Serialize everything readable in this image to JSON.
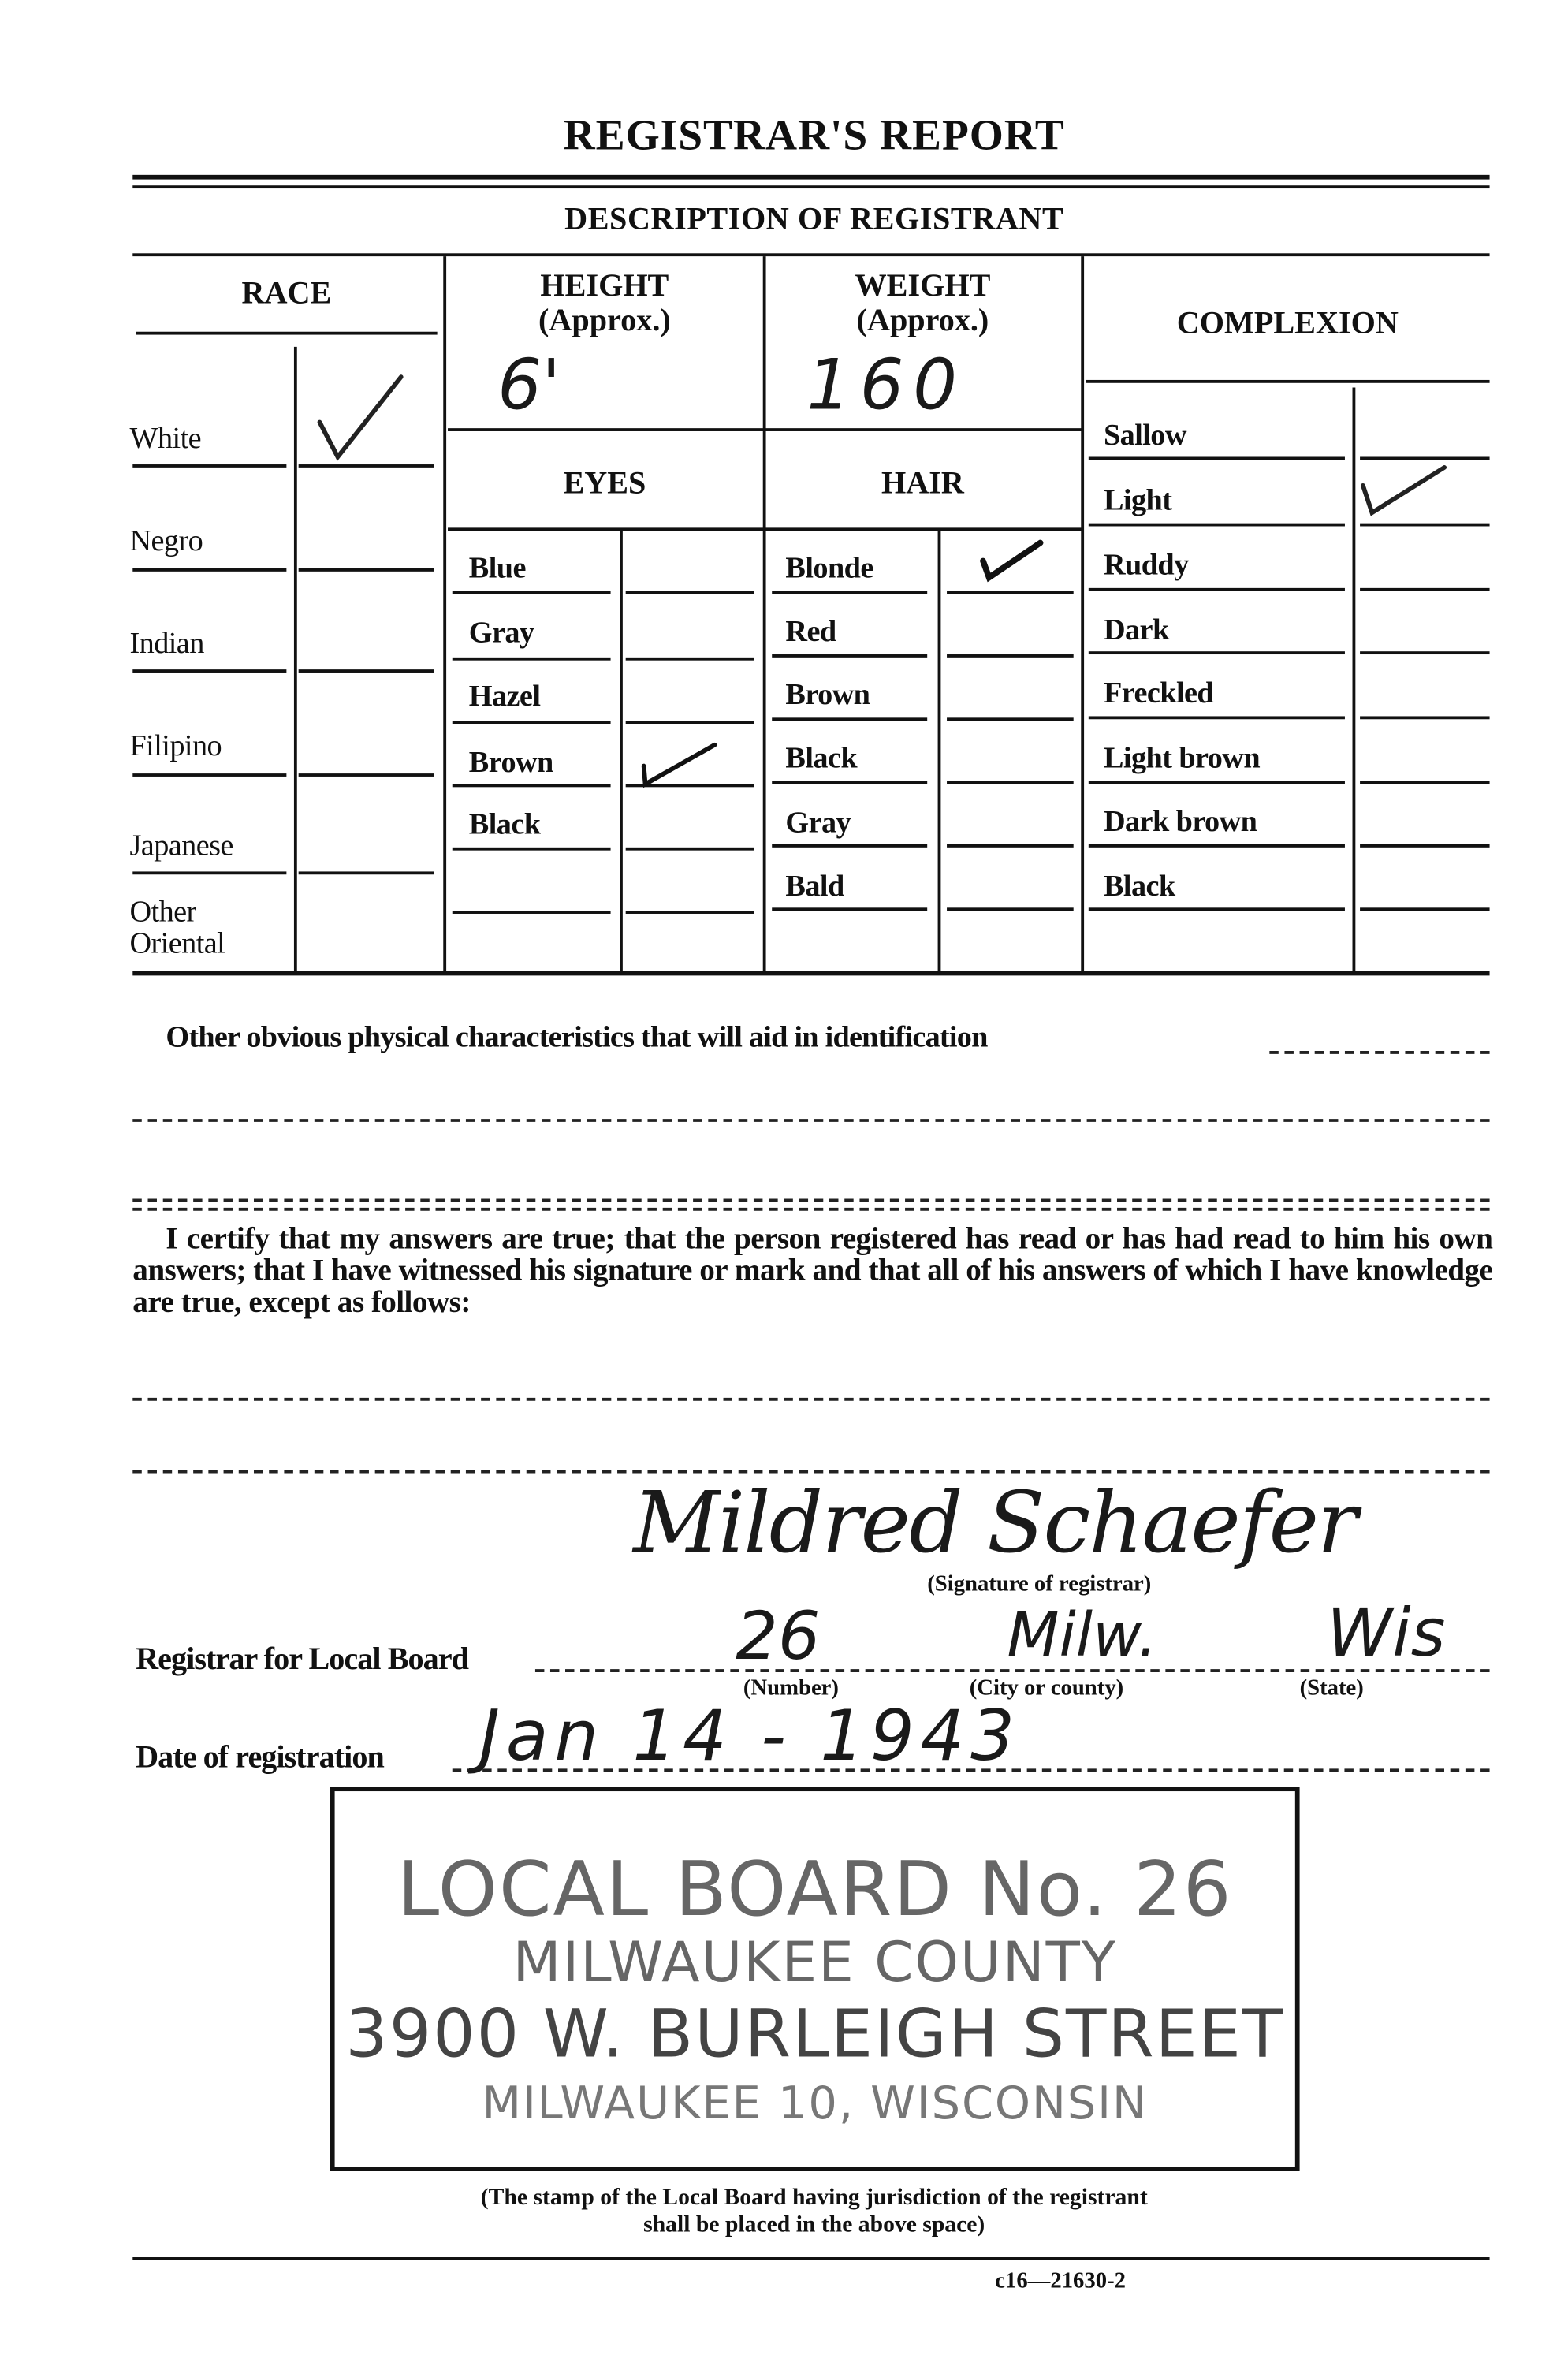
{
  "title": "REGISTRAR'S REPORT",
  "section_title": "DESCRIPTION OF REGISTRANT",
  "race": {
    "header": "RACE",
    "options": [
      "White",
      "Negro",
      "Indian",
      "Filipino",
      "Japanese",
      "Other Oriental"
    ],
    "checked": "White"
  },
  "height": {
    "header": "HEIGHT",
    "sub": "(Approx.)",
    "value": "6'"
  },
  "weight": {
    "header": "WEIGHT",
    "sub": "(Approx.)",
    "value": "160"
  },
  "eyes": {
    "header": "EYES",
    "options": [
      "Blue",
      "Gray",
      "Hazel",
      "Brown",
      "Black"
    ],
    "checked": "Brown"
  },
  "hair": {
    "header": "HAIR",
    "options": [
      "Blonde",
      "Red",
      "Brown",
      "Black",
      "Gray",
      "Bald"
    ],
    "checked": "Blonde"
  },
  "complexion": {
    "header": "COMPLEXION",
    "options": [
      "Sallow",
      "Light",
      "Ruddy",
      "Dark",
      "Freckled",
      "Light brown",
      "Dark brown",
      "Black"
    ],
    "checked": "Light"
  },
  "other_characteristics_label": "Other obvious physical characteristics that will aid in identification",
  "certification": "I certify that my answers are true; that the person registered has read or has had read to him his own answers; that I have witnessed his signature or mark and that all of his answers of which I have knowledge are true, except as follows:",
  "signature": {
    "value": "Mildred Schaefer",
    "caption": "(Signature of registrar)"
  },
  "local_board": {
    "label": "Registrar for Local Board",
    "number": "26",
    "city": "Milw.",
    "state": "Wis",
    "number_caption": "(Number)",
    "city_caption": "(City or county)",
    "state_caption": "(State)"
  },
  "date": {
    "label": "Date of registration",
    "value": "Jan 14 - 1943"
  },
  "stamp": {
    "lines": [
      "LOCAL BOARD No. 26",
      "MILWAUKEE COUNTY",
      "3900 W. BURLEIGH STREET",
      "MILWAUKEE 10, WISCONSIN"
    ],
    "caption_line1": "(The stamp of the Local Board having jurisdiction of the registrant",
    "caption_line2": "shall be placed in the above space)"
  },
  "form_number": "c16—21630-2"
}
